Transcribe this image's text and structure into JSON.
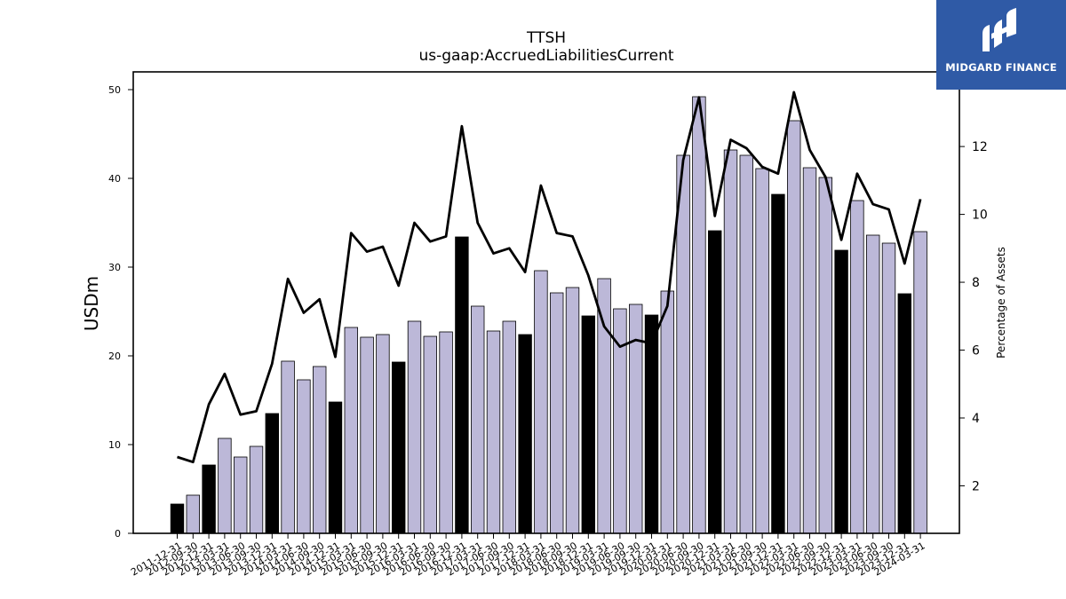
{
  "brand": {
    "name": "MIDGARD FINANCE",
    "background": "#2f5aa6"
  },
  "chart_data": {
    "type": "bar",
    "title": "TTSH",
    "subtitle": "us-gaap:AccruedLiabilitiesCurrent",
    "ylabel": "USDm",
    "y2label": "Percentage of Assets",
    "ylim": [
      0,
      52
    ],
    "y2lim": [
      0.6,
      14.2
    ],
    "yticks": [
      0,
      10,
      20,
      30,
      40,
      50
    ],
    "y2ticks": [
      2,
      4,
      6,
      8,
      10,
      12
    ],
    "grid": false,
    "colors": {
      "annual": "#000000",
      "quarter": "#bcb8d8",
      "line": "#000000"
    },
    "categories": [
      "2011-12-31",
      "2012-09-30",
      "2012-12-31",
      "2013-03-31",
      "2013-06-30",
      "2013-09-30",
      "2013-12-31",
      "2014-03-31",
      "2014-06-30",
      "2014-09-30",
      "2014-12-31",
      "2015-03-31",
      "2015-06-30",
      "2015-09-30",
      "2015-12-31",
      "2016-03-31",
      "2016-06-30",
      "2016-09-30",
      "2016-12-31",
      "2017-03-31",
      "2017-06-30",
      "2017-09-30",
      "2017-12-31",
      "2018-03-31",
      "2018-06-30",
      "2018-09-30",
      "2018-12-31",
      "2019-03-31",
      "2019-06-30",
      "2019-09-30",
      "2019-12-31",
      "2020-03-31",
      "2020-06-30",
      "2020-09-30",
      "2020-12-31",
      "2021-03-31",
      "2021-06-30",
      "2021-09-30",
      "2021-12-31",
      "2022-03-31",
      "2022-06-30",
      "2022-09-30",
      "2022-12-31",
      "2023-03-31",
      "2023-06-30",
      "2023-09-30",
      "2023-12-31",
      "2024-03-31"
    ],
    "series": [
      {
        "kind": "bar",
        "values": [
          3.3,
          4.3,
          7.7,
          10.7,
          8.6,
          9.8,
          13.5,
          19.4,
          17.3,
          18.8,
          14.8,
          23.2,
          22.1,
          22.4,
          19.3,
          23.9,
          22.2,
          22.7,
          33.4,
          25.6,
          22.8,
          23.9,
          22.4,
          29.6,
          27.1,
          27.7,
          24.5,
          28.7,
          25.3,
          25.8,
          24.6,
          27.3,
          42.6,
          49.2,
          34.1,
          43.2,
          42.6,
          41.1,
          38.2,
          46.5,
          41.2,
          40.1,
          31.9,
          37.5,
          33.6,
          32.7,
          27.0,
          34.0
        ],
        "annual": [
          true,
          false,
          true,
          false,
          false,
          false,
          true,
          false,
          false,
          false,
          true,
          false,
          false,
          false,
          true,
          false,
          false,
          false,
          true,
          false,
          false,
          false,
          true,
          false,
          false,
          false,
          true,
          false,
          false,
          false,
          true,
          false,
          false,
          false,
          true,
          false,
          false,
          false,
          true,
          false,
          false,
          false,
          true,
          false,
          false,
          false,
          true,
          false
        ]
      },
      {
        "kind": "line",
        "axis": "right",
        "values": [
          2.85,
          2.7,
          4.4,
          5.3,
          4.1,
          4.2,
          5.6,
          8.1,
          7.1,
          7.5,
          5.8,
          9.45,
          8.9,
          9.05,
          7.9,
          9.75,
          9.2,
          9.35,
          12.6,
          9.75,
          8.85,
          9.0,
          8.3,
          10.85,
          9.45,
          9.35,
          8.2,
          6.7,
          6.1,
          6.3,
          6.2,
          7.3,
          11.6,
          13.45,
          9.95,
          12.2,
          11.95,
          11.4,
          11.2,
          13.6,
          11.9,
          11.1,
          9.25,
          11.2,
          10.3,
          10.15,
          8.55,
          10.45
        ]
      }
    ]
  }
}
